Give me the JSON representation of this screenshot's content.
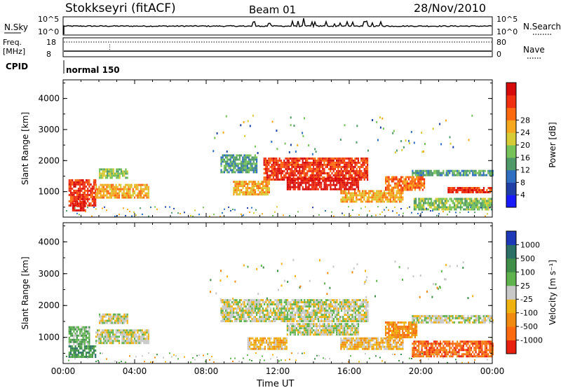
{
  "header": {
    "title": "Stokkseyri (fitACF)",
    "beam": "Beam 01",
    "date": "28/Nov/2010"
  },
  "top_panels": {
    "nsky_label": "N.Sky",
    "nsearch_label": "N.Search",
    "nsky_ticks": [
      "10^5",
      "10^0"
    ],
    "nsearch_ticks": [
      "10^5",
      "10^0"
    ],
    "freq_label_1": "Freq.",
    "freq_label_2": "[MHz]",
    "freq_ticks": [
      "18",
      "8"
    ],
    "nave_label": "Nave",
    "nave_ticks": [
      "80",
      "0"
    ],
    "cpid_label": "CPID",
    "cpid_value": "normal 150"
  },
  "chart_data": [
    {
      "type": "heatmap",
      "name": "power",
      "ylabel": "Slant Range [km]",
      "xlabel": "",
      "x_ticks": [
        "00:00",
        "04:00",
        "08:00",
        "12:00",
        "16:00",
        "20:00",
        "00:00"
      ],
      "y_ticks": [
        "1000",
        "2000",
        "3000",
        "4000"
      ],
      "xlim_hours": [
        0,
        24
      ],
      "ylim_km": [
        180,
        4600
      ],
      "colorbar": {
        "label": "Power [dB]",
        "ticks": [
          "4",
          "8",
          "12",
          "16",
          "20",
          "24",
          "28"
        ],
        "colors": [
          "#1a1aff",
          "#1f3fa6",
          "#2f6ec0",
          "#4f9a68",
          "#78c25a",
          "#d7cc36",
          "#f6a91f",
          "#ff6a10",
          "#f03010",
          "#d70a0a"
        ]
      },
      "regions": [
        {
          "t0": 0.3,
          "t1": 1.8,
          "r0": 560,
          "r1": 1400,
          "level": 8
        },
        {
          "t0": 0.5,
          "t1": 1.2,
          "r0": 370,
          "r1": 700,
          "level": 9
        },
        {
          "t0": 1.8,
          "t1": 4.8,
          "r0": 800,
          "r1": 1250,
          "level": 6
        },
        {
          "t0": 2.0,
          "t1": 3.6,
          "r0": 1450,
          "r1": 1750,
          "level": 4
        },
        {
          "t0": 8.8,
          "t1": 10.8,
          "r0": 1600,
          "r1": 2200,
          "level": 3
        },
        {
          "t0": 9.5,
          "t1": 11.5,
          "r0": 900,
          "r1": 1350,
          "level": 6
        },
        {
          "t0": 11.2,
          "t1": 17.0,
          "r0": 1400,
          "r1": 2100,
          "level": 8
        },
        {
          "t0": 12.5,
          "t1": 16.5,
          "r0": 1100,
          "r1": 1450,
          "level": 9
        },
        {
          "t0": 15.5,
          "t1": 19.0,
          "r0": 650,
          "r1": 1050,
          "level": 6
        },
        {
          "t0": 18.0,
          "t1": 20.2,
          "r0": 1050,
          "r1": 1500,
          "level": 7
        },
        {
          "t0": 19.5,
          "t1": 24.0,
          "r0": 1500,
          "r1": 1700,
          "level": 3
        },
        {
          "t0": 19.6,
          "t1": 24.0,
          "r0": 400,
          "r1": 800,
          "level": 4
        },
        {
          "t0": 21.5,
          "t1": 24.0,
          "r0": 950,
          "r1": 1150,
          "level": 8
        }
      ]
    },
    {
      "type": "heatmap",
      "name": "velocity",
      "ylabel": "Slant Range [km]",
      "xlabel": "Time UT",
      "x_ticks": [
        "00:00",
        "04:00",
        "08:00",
        "12:00",
        "16:00",
        "20:00",
        "00:00"
      ],
      "y_ticks": [
        "1000",
        "2000",
        "3000",
        "4000"
      ],
      "xlim_hours": [
        0,
        24
      ],
      "ylim_km": [
        180,
        4600
      ],
      "colorbar": {
        "label": "Velocity [m s⁻¹]",
        "ticks": [
          "1000",
          "500",
          "100",
          "25",
          "-25",
          "-100",
          "-500",
          "-1000"
        ],
        "colors": [
          "#1d39b8",
          "#2b6f66",
          "#3f8f48",
          "#5fb34e",
          "#c8c8c8",
          "#f0b210",
          "#f08a10",
          "#ff6a10",
          "#e82010"
        ]
      },
      "regions": [
        {
          "t0": 0.3,
          "t1": 1.8,
          "r0": 360,
          "r1": 750,
          "level": 2
        },
        {
          "t0": 0.3,
          "t1": 1.5,
          "r0": 800,
          "r1": 1350,
          "level": 3
        },
        {
          "t0": 1.8,
          "t1": 4.8,
          "r0": 850,
          "r1": 1250,
          "level": 4
        },
        {
          "t0": 2.0,
          "t1": 3.6,
          "r0": 1450,
          "r1": 1750,
          "level": 4
        },
        {
          "t0": 8.8,
          "t1": 17.0,
          "r0": 1500,
          "r1": 2200,
          "level": 4
        },
        {
          "t0": 12.5,
          "t1": 16.5,
          "r0": 1100,
          "r1": 1450,
          "level": 4
        },
        {
          "t0": 10.3,
          "t1": 12.5,
          "r0": 650,
          "r1": 1000,
          "level": 5
        },
        {
          "t0": 15.5,
          "t1": 19.0,
          "r0": 650,
          "r1": 1000,
          "level": 5
        },
        {
          "t0": 18.0,
          "t1": 19.8,
          "r0": 1000,
          "r1": 1500,
          "level": 6
        },
        {
          "t0": 19.5,
          "t1": 24.0,
          "r0": 400,
          "r1": 900,
          "level": 7
        },
        {
          "t0": 19.5,
          "t1": 24.0,
          "r0": 1500,
          "r1": 1700,
          "level": 4
        }
      ]
    }
  ]
}
